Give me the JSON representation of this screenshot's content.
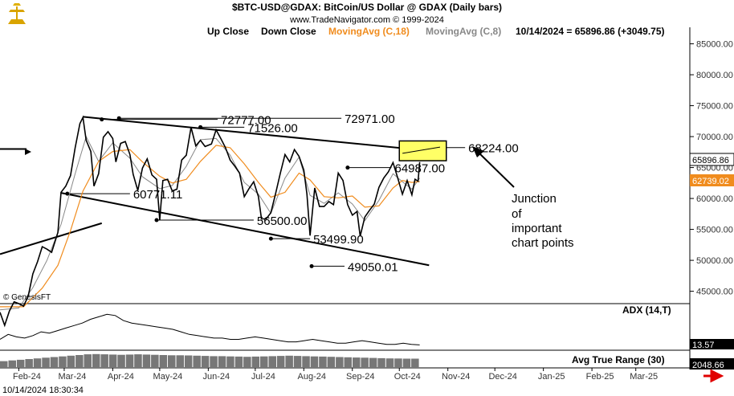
{
  "header": {
    "title": "$BTC-USD@GDAX:  BitCoin/US Dollar @ GDAX  (Daily bars)",
    "copyright": "www.TradeNavigator.com © 1999-2024",
    "legend_up": "Up Close",
    "legend_down": "Down Close",
    "legend_ma18": "MovingAvg (C,18)",
    "legend_ma8": "MovingAvg (C,8)",
    "quote": "10/14/2024 = 65896.86 (+3049.75)"
  },
  "colors": {
    "price": "#000000",
    "ma18": "#f08c1e",
    "ma8": "#888888",
    "highlight": "#ffff66",
    "last_price_bg": "#ffffff",
    "ma_tag_bg": "#f08c1e",
    "arrow_red": "#e00000"
  },
  "watermark": "© GenesisFT",
  "timestamp": "10/14/2024 18:30:34",
  "annotation": {
    "lines": [
      "Junction",
      "of",
      "important",
      "chart points"
    ]
  },
  "chart_data": {
    "type": "line",
    "price_axis": {
      "ticks": [
        "85000.00",
        "80000.00",
        "75000.00",
        "70000.00",
        "65000.00",
        "60000.00",
        "55000.00",
        "50000.00",
        "45000.00"
      ],
      "ylim": [
        43000,
        86500
      ]
    },
    "x_ticks": [
      "Feb-24",
      "Mar-24",
      "Apr-24",
      "May-24",
      "Jun-24",
      "Jul-24",
      "Aug-24",
      "Sep-24",
      "Oct-24",
      "Nov-24",
      "Dec-24",
      "Jan-25",
      "Feb-25",
      "Mar-25"
    ],
    "series": [
      {
        "name": "",
        "values": [
          [
            "2024-01-20",
            41600
          ],
          [
            "2024-01-23",
            39500
          ],
          [
            "2024-01-26",
            41800
          ],
          [
            "2024-01-29",
            43300
          ],
          [
            "2024-02-01",
            43000
          ],
          [
            "2024-02-04",
            42600
          ],
          [
            "2024-02-07",
            44200
          ],
          [
            "2024-02-10",
            47800
          ],
          [
            "2024-02-13",
            49800
          ],
          [
            "2024-02-16",
            52200
          ],
          [
            "2024-02-19",
            51800
          ],
          [
            "2024-02-22",
            51300
          ],
          [
            "2024-02-26",
            54500
          ],
          [
            "2024-02-28",
            61000
          ],
          [
            "2024-03-02",
            62000
          ],
          [
            "2024-03-05",
            63700
          ],
          [
            "2024-03-08",
            68200
          ],
          [
            "2024-03-11",
            72100
          ],
          [
            "2024-03-13",
            73100
          ],
          [
            "2024-03-15",
            69400
          ],
          [
            "2024-03-18",
            67600
          ],
          [
            "2024-03-20",
            62000
          ],
          [
            "2024-03-23",
            64000
          ],
          [
            "2024-03-26",
            69900
          ],
          [
            "2024-03-29",
            70800
          ],
          [
            "2024-04-01",
            69700
          ],
          [
            "2024-04-03",
            65900
          ],
          [
            "2024-04-06",
            68900
          ],
          [
            "2024-04-09",
            69200
          ],
          [
            "2024-04-12",
            67100
          ],
          [
            "2024-04-14",
            63900
          ],
          [
            "2024-04-17",
            61300
          ],
          [
            "2024-04-20",
            64900
          ],
          [
            "2024-04-23",
            66400
          ],
          [
            "2024-04-26",
            63800
          ],
          [
            "2024-04-29",
            63100
          ],
          [
            "2024-05-01",
            56500
          ],
          [
            "2024-05-03",
            62900
          ],
          [
            "2024-05-06",
            63100
          ],
          [
            "2024-05-09",
            61200
          ],
          [
            "2024-05-12",
            61500
          ],
          [
            "2024-05-15",
            66200
          ],
          [
            "2024-05-18",
            67000
          ],
          [
            "2024-05-21",
            71500
          ],
          [
            "2024-05-24",
            68500
          ],
          [
            "2024-05-27",
            69400
          ],
          [
            "2024-05-30",
            68400
          ],
          [
            "2024-06-03",
            68800
          ],
          [
            "2024-06-06",
            71100
          ],
          [
            "2024-06-09",
            69700
          ],
          [
            "2024-06-12",
            68200
          ],
          [
            "2024-06-15",
            66200
          ],
          [
            "2024-06-18",
            65200
          ],
          [
            "2024-06-21",
            64100
          ],
          [
            "2024-06-24",
            60300
          ],
          [
            "2024-06-27",
            61600
          ],
          [
            "2024-06-30",
            62700
          ],
          [
            "2024-07-03",
            60300
          ],
          [
            "2024-07-05",
            56700
          ],
          [
            "2024-07-08",
            56700
          ],
          [
            "2024-07-11",
            57700
          ],
          [
            "2024-07-14",
            60800
          ],
          [
            "2024-07-17",
            64100
          ],
          [
            "2024-07-20",
            67100
          ],
          [
            "2024-07-23",
            65900
          ],
          [
            "2024-07-26",
            67900
          ],
          [
            "2024-07-29",
            66800
          ],
          [
            "2024-08-01",
            64600
          ],
          [
            "2024-08-03",
            60700
          ],
          [
            "2024-08-05",
            54000
          ],
          [
            "2024-08-08",
            61700
          ],
          [
            "2024-08-11",
            58700
          ],
          [
            "2024-08-14",
            58700
          ],
          [
            "2024-08-17",
            59500
          ],
          [
            "2024-08-20",
            59000
          ],
          [
            "2024-08-23",
            64100
          ],
          [
            "2024-08-26",
            62900
          ],
          [
            "2024-08-29",
            59000
          ],
          [
            "2024-09-01",
            57300
          ],
          [
            "2024-09-04",
            57900
          ],
          [
            "2024-09-06",
            53900
          ],
          [
            "2024-09-09",
            57000
          ],
          [
            "2024-09-12",
            58100
          ],
          [
            "2024-09-15",
            59100
          ],
          [
            "2024-09-18",
            61800
          ],
          [
            "2024-09-21",
            63300
          ],
          [
            "2024-09-24",
            64300
          ],
          [
            "2024-09-27",
            65800
          ],
          [
            "2024-09-30",
            63300
          ],
          [
            "2024-10-03",
            60700
          ],
          [
            "2024-10-06",
            62900
          ],
          [
            "2024-10-09",
            60600
          ],
          [
            "2024-10-11",
            63100
          ],
          [
            "2024-10-13",
            62800
          ],
          [
            "2024-10-14",
            65896.86
          ]
        ]
      },
      {
        "name": "MovingAvg (C,18)",
        "values": [
          [
            "2024-01-20",
            42500
          ],
          [
            "2024-02-04",
            42500
          ],
          [
            "2024-02-16",
            45500
          ],
          [
            "2024-02-26",
            49200
          ],
          [
            "2024-03-05",
            54800
          ],
          [
            "2024-03-13",
            61200
          ],
          [
            "2024-03-23",
            66000
          ],
          [
            "2024-04-01",
            67600
          ],
          [
            "2024-04-12",
            67900
          ],
          [
            "2024-04-20",
            65900
          ],
          [
            "2024-05-01",
            63600
          ],
          [
            "2024-05-09",
            62500
          ],
          [
            "2024-05-18",
            63100
          ],
          [
            "2024-05-27",
            66000
          ],
          [
            "2024-06-06",
            68600
          ],
          [
            "2024-06-15",
            68200
          ],
          [
            "2024-06-24",
            65600
          ],
          [
            "2024-07-03",
            62600
          ],
          [
            "2024-07-11",
            60200
          ],
          [
            "2024-07-20",
            61000
          ],
          [
            "2024-07-29",
            64100
          ],
          [
            "2024-08-05",
            63000
          ],
          [
            "2024-08-14",
            60300
          ],
          [
            "2024-08-23",
            60100
          ],
          [
            "2024-09-01",
            60400
          ],
          [
            "2024-09-09",
            58600
          ],
          [
            "2024-09-18",
            58800
          ],
          [
            "2024-09-27",
            61700
          ],
          [
            "2024-10-03",
            62900
          ],
          [
            "2024-10-09",
            62600
          ],
          [
            "2024-10-14",
            62739.02
          ]
        ]
      },
      {
        "name": "MovingAvg (C,8)",
        "values": [
          [
            "2024-01-20",
            42000
          ],
          [
            "2024-02-01",
            42300
          ],
          [
            "2024-02-10",
            45600
          ],
          [
            "2024-02-19",
            50000
          ],
          [
            "2024-02-28",
            55800
          ],
          [
            "2024-03-08",
            64000
          ],
          [
            "2024-03-15",
            70000
          ],
          [
            "2024-03-23",
            66000
          ],
          [
            "2024-04-01",
            69000
          ],
          [
            "2024-04-12",
            66500
          ],
          [
            "2024-04-20",
            63500
          ],
          [
            "2024-05-01",
            61600
          ],
          [
            "2024-05-09",
            62100
          ],
          [
            "2024-05-18",
            65200
          ],
          [
            "2024-05-27",
            69500
          ],
          [
            "2024-06-06",
            69700
          ],
          [
            "2024-06-15",
            67000
          ],
          [
            "2024-06-24",
            62600
          ],
          [
            "2024-07-03",
            60700
          ],
          [
            "2024-07-11",
            57600
          ],
          [
            "2024-07-20",
            63300
          ],
          [
            "2024-07-29",
            66700
          ],
          [
            "2024-08-05",
            60500
          ],
          [
            "2024-08-14",
            59200
          ],
          [
            "2024-08-23",
            60900
          ],
          [
            "2024-09-01",
            59100
          ],
          [
            "2024-09-09",
            56400
          ],
          [
            "2024-09-18",
            59700
          ],
          [
            "2024-09-27",
            64000
          ],
          [
            "2024-10-03",
            62700
          ],
          [
            "2024-10-09",
            61500
          ],
          [
            "2024-10-14",
            63300
          ]
        ]
      }
    ],
    "trendlines": [
      {
        "from": [
          "2024-03-13",
          73200
        ],
        "to": [
          "2024-10-20",
          67700
        ]
      },
      {
        "from": [
          "2024-02-28",
          60900
        ],
        "to": [
          "2024-10-20",
          49200
        ]
      },
      {
        "from": [
          "2024-01-20",
          51000
        ],
        "to": [
          "2024-03-25",
          56000
        ]
      },
      {
        "from": [
          "2024-01-20",
          68000
        ],
        "to": [
          "2024-01-30",
          68000
        ]
      }
    ],
    "levels": [
      {
        "label": "72777.00",
        "x": "2024-03-25",
        "value": 72777,
        "line_to": "2024-06-07"
      },
      {
        "label": "72971.00",
        "x": "2024-04-05",
        "value": 72971,
        "line_to": "2024-08-25"
      },
      {
        "label": "71526.00",
        "x": "2024-05-27",
        "value": 71526,
        "line_to": "2024-06-24"
      },
      {
        "label": "68224.00",
        "x": "2024-10-26",
        "value": 68224,
        "line_to": "2024-11-12"
      },
      {
        "label": "64987.00",
        "x": "2024-08-29",
        "value": 64987,
        "line_to": "2024-09-26"
      },
      {
        "label": "60771.11",
        "x": "2024-03-03",
        "value": 60771.11,
        "line_to": "2024-04-12"
      },
      {
        "label": "56500.00",
        "x": "2024-04-29",
        "value": 56500,
        "line_to": "2024-06-30"
      },
      {
        "label": "53499.90",
        "x": "2024-07-11",
        "value": 53499.9,
        "line_to": "2024-08-05"
      },
      {
        "label": "49050.01",
        "x": "2024-08-06",
        "value": 49050.01,
        "line_to": "2024-08-27"
      }
    ],
    "highlight_box": {
      "from": [
        "2024-10-01",
        66100
      ],
      "to": [
        "2024-10-31",
        69300
      ]
    },
    "last_price_label": "65896.86",
    "ma18_label": "62739.02",
    "adx": {
      "label": "ADX (14,T)",
      "last_label": "13.57",
      "values": [
        18,
        22,
        20,
        19,
        21,
        24,
        23,
        25,
        27,
        29,
        31,
        34,
        36,
        38,
        37,
        33,
        31,
        30,
        29,
        28,
        27,
        26,
        24,
        22,
        21,
        20,
        19,
        19,
        18,
        18,
        19,
        20,
        19,
        18,
        17,
        16,
        16,
        17,
        18,
        17,
        16,
        15,
        15,
        16,
        17,
        16,
        15,
        14,
        14,
        15,
        14,
        13.57
      ]
    },
    "atr": {
      "label": "Avg True Range (30)",
      "last_label": "2048.66",
      "values": [
        1500,
        1650,
        1800,
        1950,
        2100,
        2250,
        2400,
        2550,
        2700,
        2850,
        3000,
        3050,
        3000,
        2950,
        2900,
        2950,
        3000,
        2950,
        2900,
        2850,
        2800,
        2800,
        2750,
        2700,
        2650,
        2600,
        2600,
        2550,
        2500,
        2450,
        2500,
        2550,
        2600,
        2650,
        2700,
        2650,
        2600,
        2550,
        2500,
        2450,
        2400,
        2350,
        2300,
        2250,
        2200,
        2150,
        2100,
        2075,
        2050,
        2048.66
      ]
    }
  }
}
